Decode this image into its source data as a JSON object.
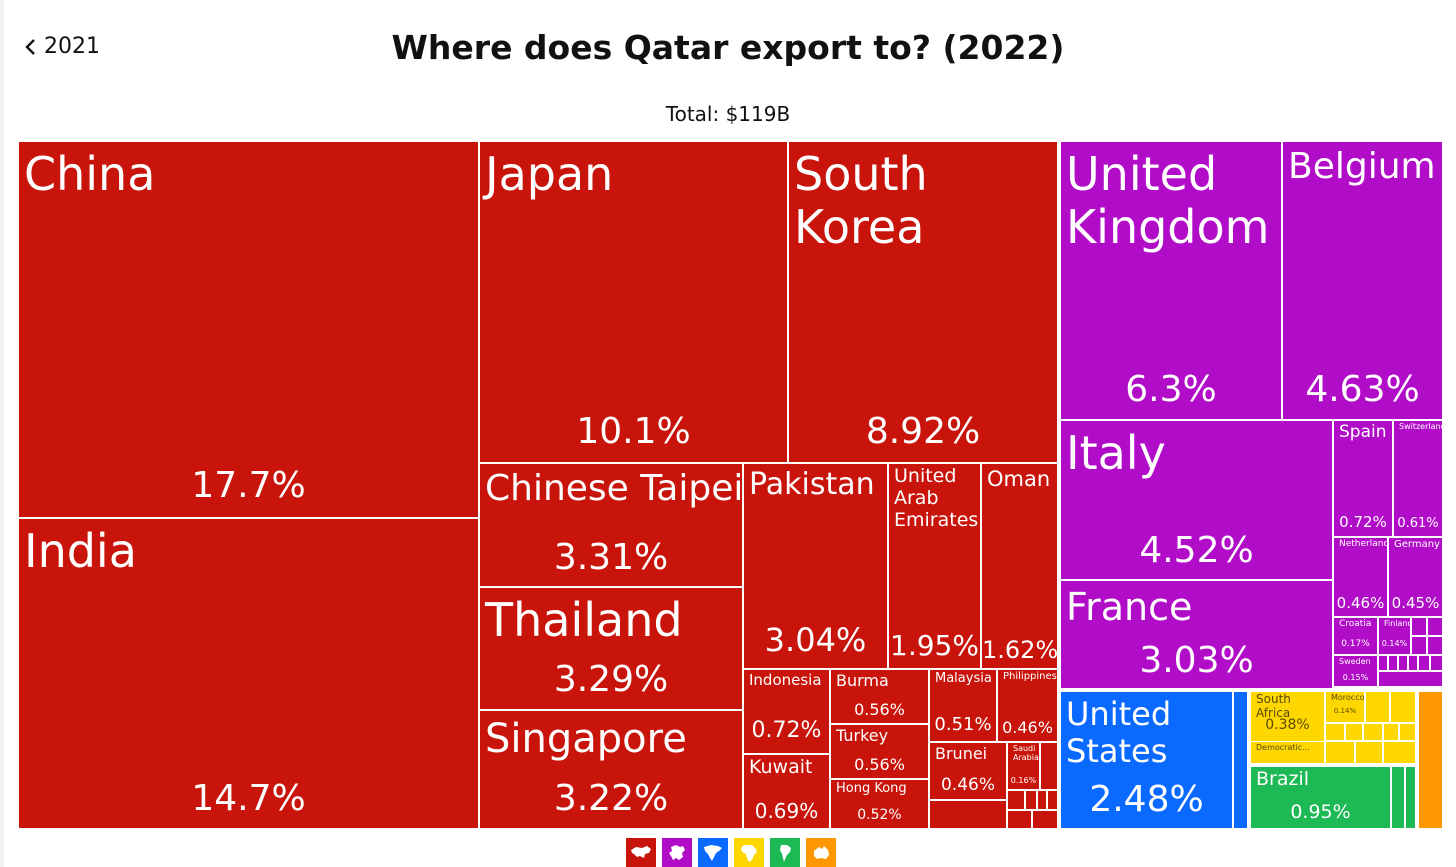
{
  "nav": {
    "back_label": "2021"
  },
  "title": "Where does Qatar export to? (2022)",
  "total": "Total: $119B",
  "colors": {
    "asia": "#c8140a",
    "europe": "#b10cc8",
    "north_america": "#0a6aff",
    "africa": "#ffd700",
    "south_america": "#1db954",
    "oceania": "#ff9800"
  },
  "region_icons": [
    {
      "name": "asia-icon",
      "color": "#c8140a"
    },
    {
      "name": "europe-icon",
      "color": "#b10cc8"
    },
    {
      "name": "north-america-icon",
      "color": "#0a6aff"
    },
    {
      "name": "africa-icon",
      "color": "#ffd700"
    },
    {
      "name": "south-america-icon",
      "color": "#1db954"
    },
    {
      "name": "oceania-icon",
      "color": "#ff9800"
    }
  ],
  "chart_data": {
    "type": "treemap",
    "title": "Where does Qatar export to? (2022)",
    "subtitle": "Total: $119B",
    "series": [
      {
        "name": "China",
        "value": 17.7,
        "label": "17.7%",
        "region": "asia"
      },
      {
        "name": "India",
        "value": 14.7,
        "label": "14.7%",
        "region": "asia"
      },
      {
        "name": "Japan",
        "value": 10.1,
        "label": "10.1%",
        "region": "asia"
      },
      {
        "name": "South Korea",
        "value": 8.92,
        "label": "8.92%",
        "region": "asia"
      },
      {
        "name": "Chinese Taipei",
        "value": 3.31,
        "label": "3.31%",
        "region": "asia"
      },
      {
        "name": "Thailand",
        "value": 3.29,
        "label": "3.29%",
        "region": "asia"
      },
      {
        "name": "Singapore",
        "value": 3.22,
        "label": "3.22%",
        "region": "asia"
      },
      {
        "name": "Pakistan",
        "value": 3.04,
        "label": "3.04%",
        "region": "asia"
      },
      {
        "name": "United Arab Emirates",
        "value": 1.95,
        "label": "1.95%",
        "region": "asia"
      },
      {
        "name": "Oman",
        "value": 1.62,
        "label": "1.62%",
        "region": "asia"
      },
      {
        "name": "Indonesia",
        "value": 0.72,
        "label": "0.72%",
        "region": "asia"
      },
      {
        "name": "Burma",
        "value": 0.56,
        "label": "0.56%",
        "region": "asia"
      },
      {
        "name": "Malaysia",
        "value": 0.51,
        "label": "0.51%",
        "region": "asia"
      },
      {
        "name": "Philippines",
        "value": 0.46,
        "label": "0.46%",
        "region": "asia"
      },
      {
        "name": "Turkey",
        "value": 0.56,
        "label": "0.56%",
        "region": "asia"
      },
      {
        "name": "Kuwait",
        "value": 0.69,
        "label": "0.69%",
        "region": "asia"
      },
      {
        "name": "Hong Kong",
        "value": 0.52,
        "label": "0.52%",
        "region": "asia"
      },
      {
        "name": "Brunei",
        "value": 0.46,
        "label": "0.46%",
        "region": "asia"
      },
      {
        "name": "Saudi Arabia",
        "value": 0.16,
        "label": "0.16%",
        "region": "asia"
      },
      {
        "name": "United Kingdom",
        "value": 6.3,
        "label": "6.3%",
        "region": "europe"
      },
      {
        "name": "Belgium",
        "value": 4.63,
        "label": "4.63%",
        "region": "europe"
      },
      {
        "name": "Italy",
        "value": 4.52,
        "label": "4.52%",
        "region": "europe"
      },
      {
        "name": "France",
        "value": 3.03,
        "label": "3.03%",
        "region": "europe"
      },
      {
        "name": "Spain",
        "value": 0.72,
        "label": "0.72%",
        "region": "europe"
      },
      {
        "name": "Switzerland",
        "value": 0.61,
        "label": "0.61%",
        "region": "europe"
      },
      {
        "name": "Netherlands",
        "value": 0.46,
        "label": "0.46%",
        "region": "europe"
      },
      {
        "name": "Germany",
        "value": 0.45,
        "label": "0.45%",
        "region": "europe"
      },
      {
        "name": "Croatia",
        "value": 0.17,
        "label": "0.17%",
        "region": "europe"
      },
      {
        "name": "Finland",
        "value": 0.14,
        "label": "0.14%",
        "region": "europe"
      },
      {
        "name": "Sweden",
        "value": 0.15,
        "label": "0.15%",
        "region": "europe"
      },
      {
        "name": "United States",
        "value": 2.48,
        "label": "2.48%",
        "region": "north_america"
      },
      {
        "name": "South Africa",
        "value": 0.38,
        "label": "0.38%",
        "region": "africa"
      },
      {
        "name": "Morocco",
        "value": 0.14,
        "label": "0.14%",
        "region": "africa"
      },
      {
        "name": "Democratic...",
        "value": null,
        "label": "",
        "region": "africa"
      },
      {
        "name": "Brazil",
        "value": 0.95,
        "label": "0.95%",
        "region": "south_america"
      }
    ]
  }
}
